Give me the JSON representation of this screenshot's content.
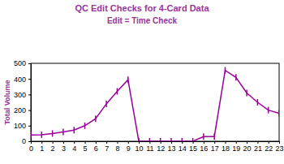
{
  "chart_data": {
    "type": "line",
    "title": "QC Edit Checks for 4-Card Data",
    "subtitle": "Edit = Time Check",
    "y_label": "Total Volume",
    "x": [
      0,
      1,
      2,
      3,
      4,
      5,
      6,
      7,
      8,
      9,
      10,
      11,
      12,
      13,
      14,
      15,
      16,
      17,
      18,
      19,
      20,
      21,
      22,
      23
    ],
    "values": [
      40,
      42,
      50,
      60,
      72,
      100,
      145,
      240,
      320,
      395,
      0,
      0,
      0,
      0,
      0,
      0,
      30,
      30,
      455,
      410,
      310,
      250,
      200,
      180
    ],
    "color": "#990099",
    "marker": "line",
    "xlim": [
      0,
      23
    ],
    "ylim": [
      0,
      500
    ],
    "xticks": [
      0,
      1,
      2,
      3,
      4,
      5,
      6,
      7,
      8,
      9,
      10,
      11,
      12,
      13,
      14,
      15,
      16,
      17,
      18,
      19,
      20,
      21,
      22,
      23
    ],
    "yticks": [
      0,
      100,
      200,
      300,
      400,
      500
    ],
    "grid": false
  }
}
